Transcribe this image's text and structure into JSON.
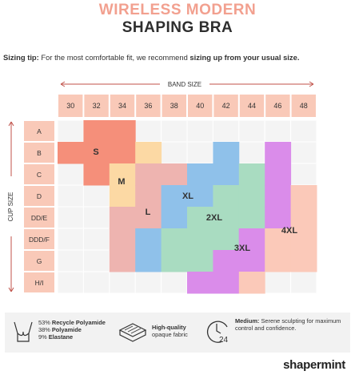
{
  "header": {
    "title_line_1": "WIRELESS MODERN",
    "title_line_2": "SHAPING BRA"
  },
  "tip": {
    "label": "Sizing tip:",
    "text": "For the most comfortable fit, we recommend",
    "emphasis": "sizing up from your usual size."
  },
  "chart": {
    "band_label": "BAND SIZE",
    "cup_label": "CUP SIZE",
    "bands": [
      "30",
      "32",
      "34",
      "36",
      "38",
      "40",
      "42",
      "44",
      "46",
      "48"
    ],
    "cups": [
      "A",
      "B",
      "C",
      "D",
      "DD/E",
      "DDD/F",
      "G",
      "H/I"
    ],
    "sizes": [
      "S",
      "M",
      "L",
      "XL",
      "2XL",
      "3XL",
      "4XL"
    ]
  },
  "features": [
    {
      "lines": [
        {
          "pct": "53%",
          "text": "Recycle Polyamide"
        },
        {
          "pct": "38%",
          "text": "Polyamide"
        },
        {
          "pct": "9%",
          "text": "Elastane"
        }
      ]
    },
    {
      "bold": "High-quality",
      "text": "opaque fabric"
    },
    {
      "bold": "Medium:",
      "text": "Serene sculpting for maximum control and confidence."
    }
  ],
  "footer": {
    "brand": "shapermint"
  }
}
